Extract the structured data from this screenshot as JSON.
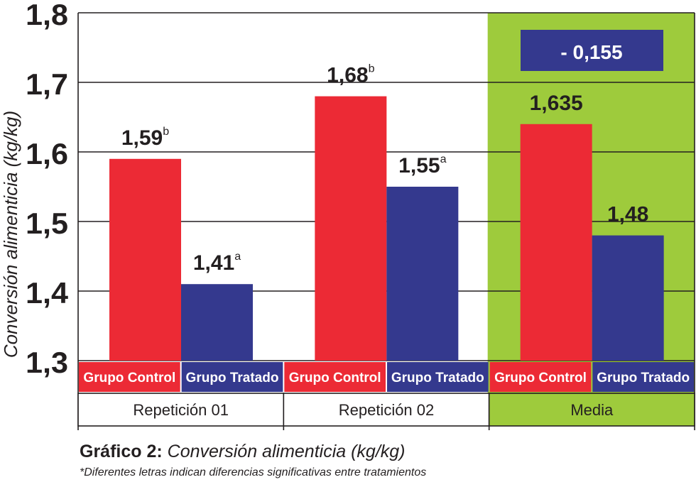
{
  "chart_data": {
    "type": "bar",
    "ylabel": "Conversión alimenticia  (kg/kg)",
    "ylim": [
      1.3,
      1.8
    ],
    "yticks": [
      "1,8",
      "1,7",
      "1,6",
      "1,5",
      "1,4",
      "1,3"
    ],
    "ytick_values": [
      1.8,
      1.7,
      1.6,
      1.5,
      1.4,
      1.3
    ],
    "grid": true,
    "groups": [
      {
        "name": "Repetición 01",
        "highlight": false,
        "bars": [
          {
            "series": "Grupo Control",
            "value": 1.59,
            "label": "1,59",
            "sup": "b"
          },
          {
            "series": "Grupo Tratado",
            "value": 1.41,
            "label": "1,41",
            "sup": "a"
          }
        ]
      },
      {
        "name": "Repetición 02",
        "highlight": false,
        "bars": [
          {
            "series": "Grupo Control",
            "value": 1.68,
            "label": "1,68",
            "sup": "b"
          },
          {
            "series": "Grupo Tratado",
            "value": 1.55,
            "label": "1,55",
            "sup": "a"
          }
        ]
      },
      {
        "name": "Media",
        "highlight": true,
        "bars": [
          {
            "series": "Grupo Control",
            "value": 1.64,
            "label": "1,635",
            "sup": ""
          },
          {
            "series": "Grupo Tratado",
            "value": 1.48,
            "label": "1,48",
            "sup": ""
          }
        ]
      }
    ],
    "difference_badge": "- 0,155",
    "colors": {
      "control": "#ec2a35",
      "tratado": "#34398e",
      "highlight": "#9ecb3c",
      "grid": "#231f20"
    }
  },
  "caption": {
    "label": "Gráfico 2:",
    "text": "Conversión alimenticia (kg/kg)"
  },
  "footnote": "*Diferentes letras indican diferencias significativas entre tratamientos"
}
